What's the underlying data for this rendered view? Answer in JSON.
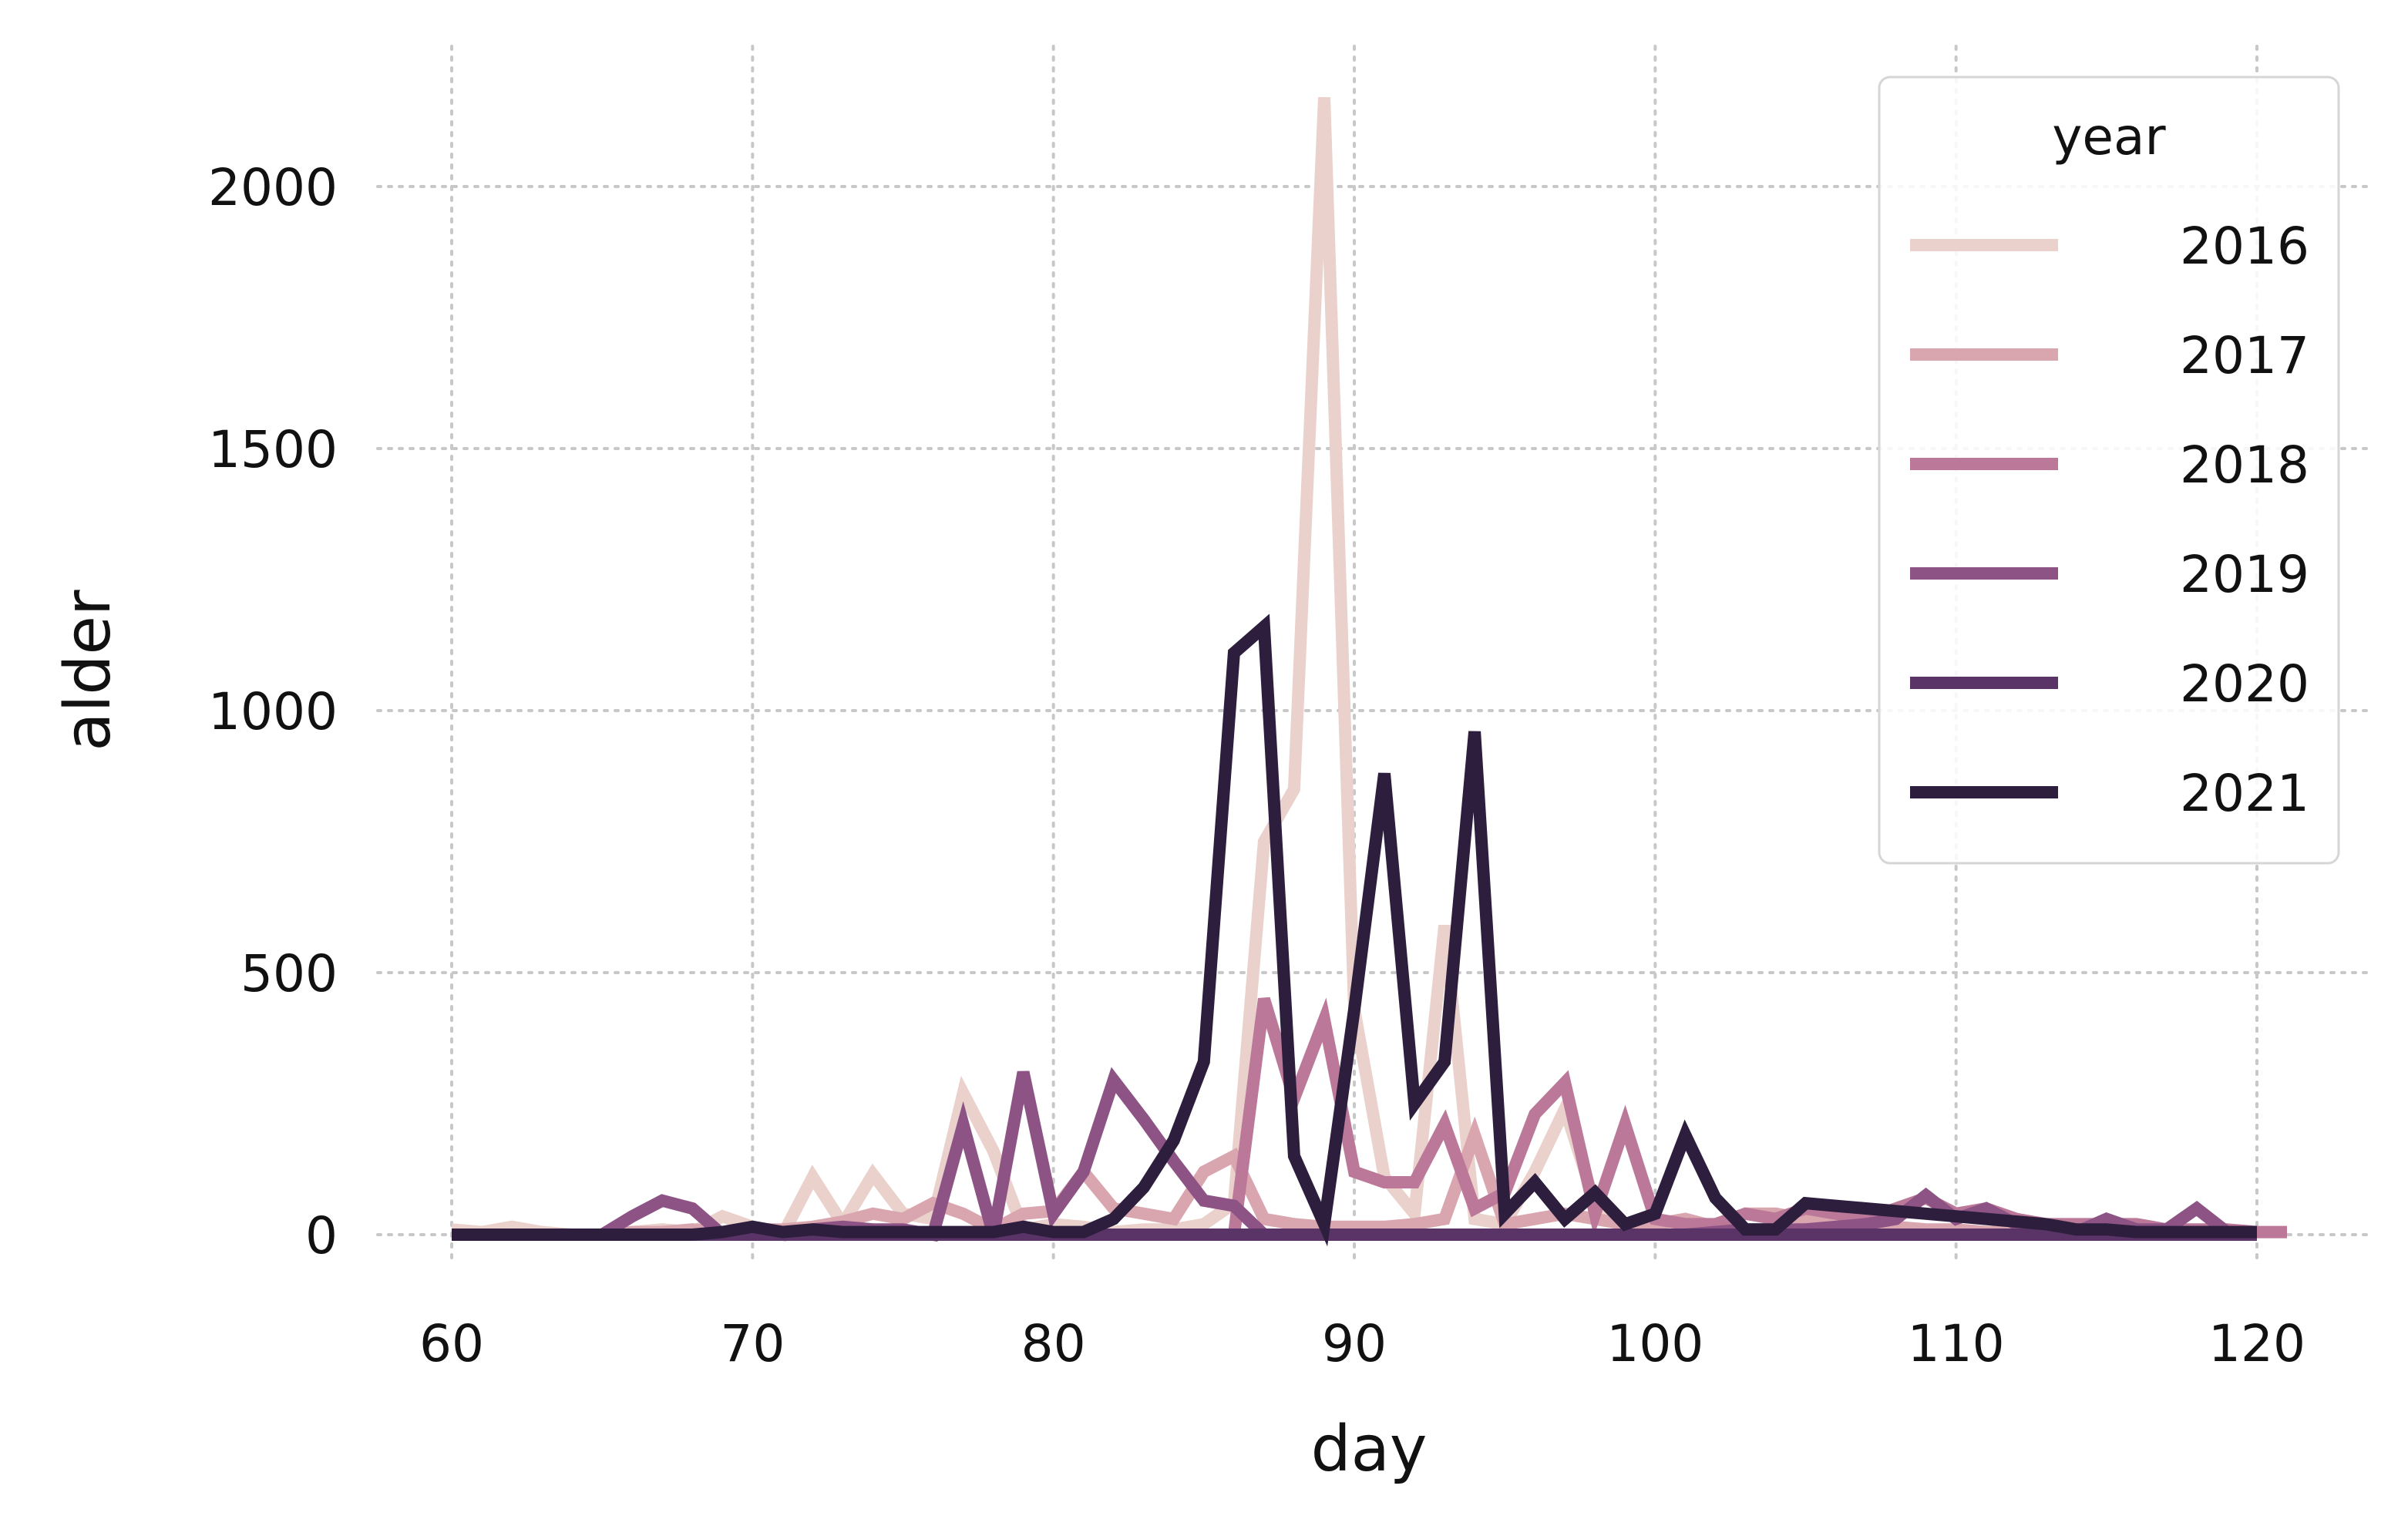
{
  "chart_data": {
    "type": "line",
    "xlabel": "day",
    "ylabel": "alder",
    "xlim": [
      60,
      121
    ],
    "ylim": [
      -80,
      2260
    ],
    "xticks": [
      60,
      70,
      80,
      90,
      100,
      110,
      120
    ],
    "yticks": [
      0,
      500,
      1000,
      1500,
      2000
    ],
    "x_tick_labels": [
      "60",
      "70",
      "80",
      "90",
      "100",
      "110",
      "120"
    ],
    "y_tick_labels": [
      "0",
      "500",
      "1000",
      "1500",
      "2000"
    ],
    "grid": true,
    "legend": {
      "title": "year",
      "placement": "top-right"
    },
    "series": [
      {
        "name": "2016",
        "color": "#ead1cb",
        "x": [
          60,
          61,
          62,
          63,
          64,
          65,
          66,
          67,
          68,
          69,
          70,
          71,
          72,
          73,
          74,
          75,
          76,
          77,
          78,
          79,
          80,
          81,
          82,
          83,
          84,
          85,
          86,
          87,
          88,
          89,
          90,
          91,
          92,
          93,
          94,
          95,
          96,
          97,
          98,
          99,
          100,
          101,
          102,
          103,
          104,
          105,
          106,
          107,
          108,
          109,
          110,
          111,
          112,
          113,
          114,
          115,
          116,
          117,
          118,
          119,
          120
        ],
        "values": [
          10,
          5,
          15,
          5,
          0,
          0,
          5,
          10,
          5,
          35,
          15,
          0,
          110,
          20,
          115,
          40,
          30,
          270,
          160,
          10,
          20,
          15,
          5,
          10,
          10,
          20,
          60,
          750,
          850,
          2170,
          430,
          110,
          40,
          590,
          30,
          20,
          120,
          240,
          60,
          15,
          10,
          10,
          5,
          5,
          5,
          5,
          5,
          5,
          5,
          5,
          5,
          5,
          5,
          5,
          5,
          5,
          5,
          5,
          5,
          5,
          5
        ]
      },
      {
        "name": "2017",
        "color": "#d9a5ae",
        "x": [
          60,
          61,
          62,
          63,
          64,
          65,
          66,
          67,
          68,
          69,
          70,
          71,
          72,
          73,
          74,
          75,
          76,
          77,
          78,
          79,
          80,
          81,
          82,
          83,
          84,
          85,
          86,
          87,
          88,
          89,
          90,
          91,
          92,
          93,
          94,
          95,
          96,
          97,
          98,
          99,
          100,
          101,
          102,
          103,
          104,
          105,
          106,
          107,
          108,
          109,
          110,
          111,
          112,
          113,
          114,
          115,
          116,
          117,
          118,
          119,
          120
        ],
        "values": [
          0,
          0,
          0,
          0,
          0,
          0,
          5,
          5,
          10,
          5,
          10,
          10,
          15,
          25,
          40,
          30,
          60,
          40,
          10,
          40,
          45,
          120,
          50,
          40,
          30,
          120,
          150,
          30,
          20,
          15,
          15,
          15,
          20,
          30,
          190,
          20,
          30,
          40,
          30,
          20,
          20,
          30,
          15,
          40,
          40,
          30,
          20,
          20,
          15,
          10,
          10,
          5,
          5,
          5,
          5,
          5,
          5,
          5,
          5,
          5,
          5
        ]
      },
      {
        "name": "2018",
        "color": "#bb7898",
        "x": [
          60,
          61,
          62,
          63,
          64,
          65,
          66,
          67,
          68,
          69,
          70,
          71,
          72,
          73,
          74,
          75,
          76,
          77,
          78,
          79,
          80,
          81,
          82,
          83,
          84,
          85,
          86,
          87,
          88,
          89,
          90,
          91,
          92,
          93,
          94,
          95,
          96,
          97,
          98,
          99,
          100,
          101,
          102,
          103,
          104,
          105,
          106,
          107,
          108,
          109,
          110,
          111,
          112,
          113,
          114,
          115,
          116,
          117,
          118,
          119,
          120,
          121
        ],
        "values": [
          0,
          0,
          0,
          0,
          0,
          0,
          0,
          0,
          0,
          0,
          0,
          0,
          0,
          0,
          0,
          0,
          0,
          0,
          0,
          0,
          0,
          0,
          0,
          0,
          0,
          0,
          0,
          450,
          260,
          410,
          120,
          100,
          100,
          210,
          50,
          80,
          230,
          290,
          40,
          210,
          30,
          20,
          20,
          40,
          30,
          50,
          40,
          30,
          50,
          70,
          40,
          50,
          30,
          20,
          20,
          20,
          20,
          10,
          10,
          10,
          5,
          5
        ]
      },
      {
        "name": "2019",
        "color": "#8d5385",
        "x": [
          60,
          61,
          62,
          63,
          64,
          65,
          66,
          67,
          68,
          69,
          70,
          71,
          72,
          73,
          74,
          75,
          76,
          77,
          78,
          79,
          80,
          81,
          82,
          83,
          84,
          85,
          86,
          87,
          88,
          89,
          90,
          91,
          92,
          93,
          94,
          95,
          96,
          97,
          98,
          99,
          100,
          101,
          102,
          103,
          104,
          105,
          106,
          107,
          108,
          109,
          110,
          111,
          112,
          113,
          114,
          115,
          116,
          117,
          118,
          119,
          120
        ],
        "values": [
          0,
          0,
          0,
          0,
          0,
          0,
          35,
          65,
          50,
          0,
          0,
          0,
          10,
          15,
          10,
          10,
          0,
          210,
          0,
          310,
          40,
          120,
          295,
          220,
          140,
          65,
          55,
          0,
          0,
          0,
          0,
          0,
          0,
          0,
          0,
          0,
          0,
          0,
          0,
          0,
          0,
          0,
          5,
          10,
          10,
          10,
          15,
          20,
          30,
          75,
          30,
          50,
          20,
          5,
          5,
          30,
          10,
          10,
          50,
          5,
          5
        ]
      },
      {
        "name": "2020",
        "color": "#5a3467",
        "x": [
          60,
          61,
          62,
          63,
          64,
          65,
          66,
          67,
          68,
          69,
          70,
          71,
          72,
          73,
          74,
          75,
          76,
          77,
          78,
          79,
          80,
          81,
          82,
          83,
          84,
          85,
          86,
          87,
          88,
          89,
          90,
          91,
          92,
          93,
          94,
          95,
          96,
          97,
          98,
          99,
          100,
          101,
          102,
          103,
          104,
          105,
          106,
          107,
          108,
          109,
          110,
          111,
          112,
          113,
          114,
          115,
          116,
          117,
          118,
          119,
          120
        ],
        "values": [
          0,
          0,
          0,
          0,
          0,
          0,
          0,
          0,
          0,
          0,
          0,
          0,
          0,
          0,
          0,
          0,
          0,
          0,
          0,
          0,
          0,
          0,
          0,
          0,
          0,
          0,
          0,
          0,
          0,
          0,
          0,
          0,
          0,
          0,
          0,
          0,
          0,
          0,
          0,
          0,
          0,
          0,
          0,
          0,
          0,
          0,
          0,
          0,
          0,
          0,
          0,
          0,
          0,
          0,
          0,
          0,
          0,
          0,
          0,
          0,
          0
        ]
      },
      {
        "name": "2021",
        "color": "#2d1e3e",
        "x": [
          60,
          61,
          62,
          63,
          64,
          65,
          66,
          67,
          68,
          69,
          70,
          71,
          72,
          73,
          74,
          75,
          76,
          77,
          78,
          79,
          80,
          81,
          82,
          83,
          84,
          85,
          86,
          87,
          88,
          89,
          90,
          91,
          92,
          93,
          94,
          95,
          96,
          97,
          98,
          99,
          100,
          101,
          102,
          103,
          104,
          105,
          106,
          107,
          108,
          109,
          110,
          111,
          112,
          113,
          114,
          115,
          116,
          117,
          118,
          119,
          120
        ],
        "values": [
          0,
          0,
          0,
          0,
          0,
          0,
          0,
          0,
          0,
          5,
          15,
          5,
          10,
          5,
          5,
          5,
          5,
          5,
          5,
          15,
          5,
          5,
          30,
          90,
          180,
          330,
          1110,
          1160,
          150,
          20,
          430,
          880,
          250,
          330,
          960,
          40,
          100,
          30,
          80,
          20,
          40,
          190,
          70,
          10,
          10,
          60,
          55,
          50,
          45,
          40,
          35,
          30,
          25,
          20,
          10,
          10,
          5,
          5,
          5,
          5,
          5
        ]
      }
    ]
  }
}
